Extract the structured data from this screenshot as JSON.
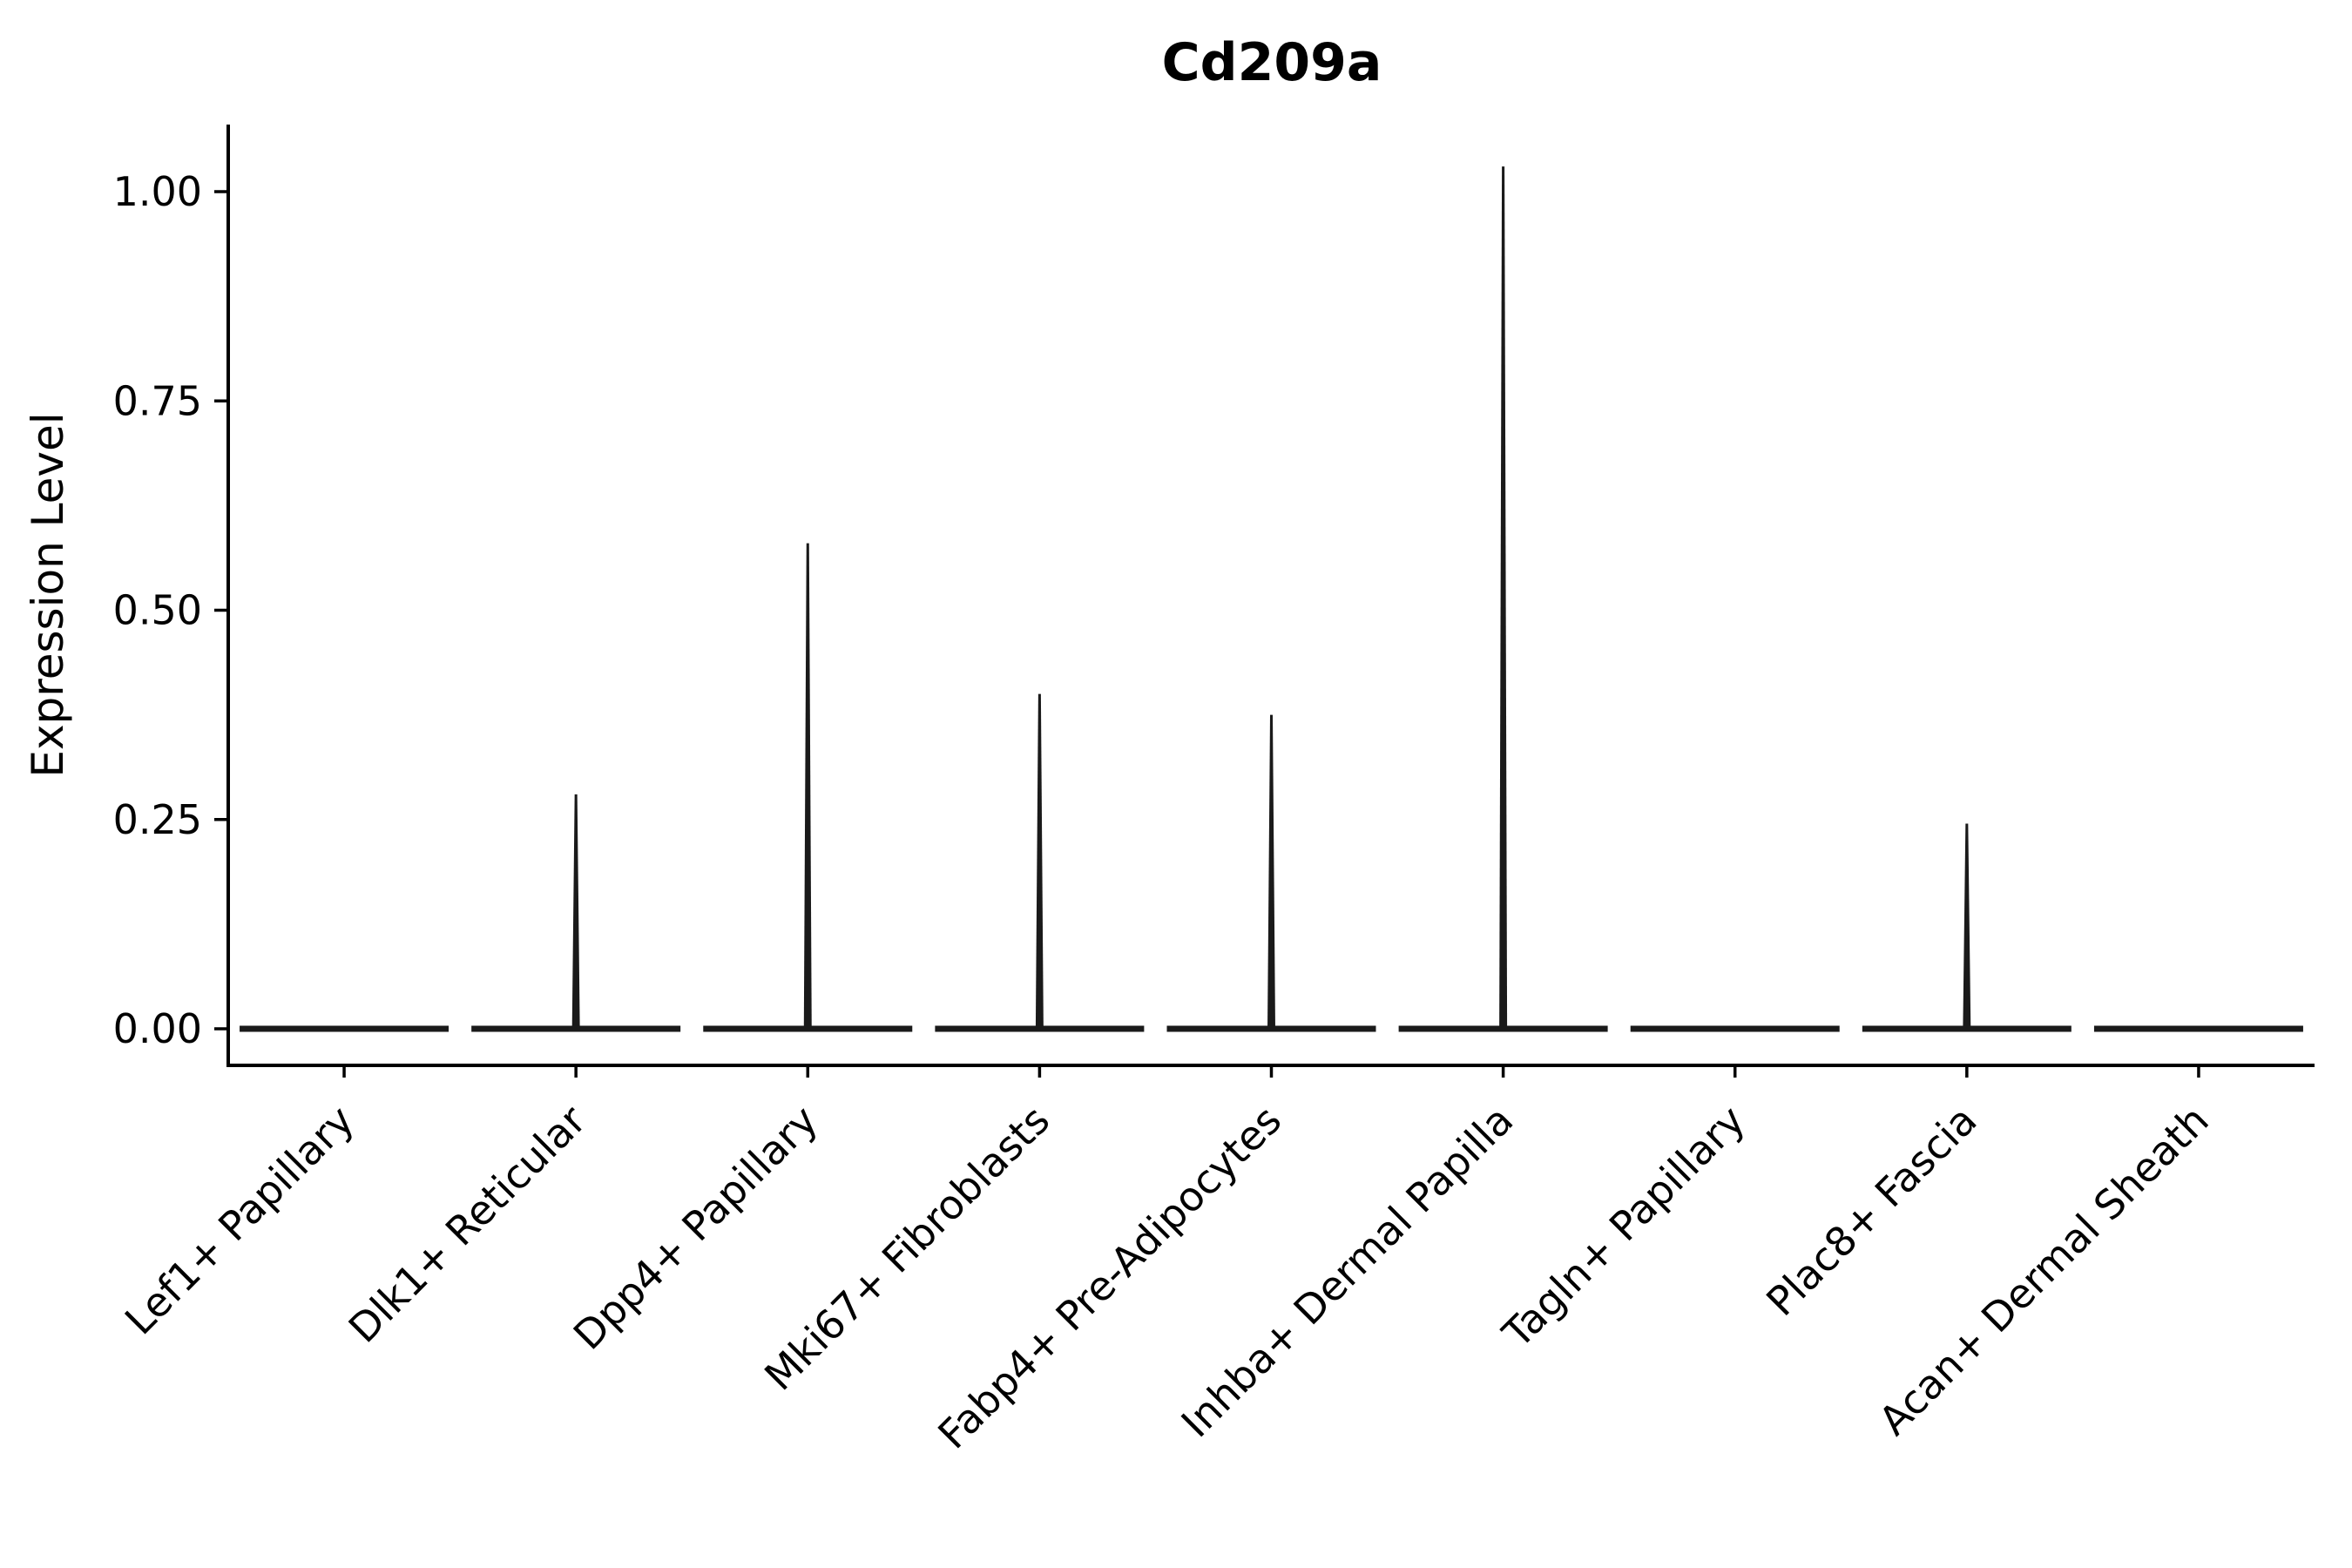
{
  "chart_data": {
    "type": "violin",
    "title": "Cd209a",
    "xlabel": "",
    "ylabel": "Expression Level",
    "categories": [
      "Lef1+ Papillary",
      "Dlk1+ Reticular",
      "Dpp4+ Papillary",
      "Mki67+ Fibroblasts",
      "Fabp4+ Pre-Adipocytes",
      "Inhba+ Dermal Papilla",
      "Tagln+ Papillary",
      "Plac8+ Fascia",
      "Acan+ Dermal Sheath"
    ],
    "baseline_value": 0.0,
    "max_expression": [
      0.0,
      0.28,
      0.58,
      0.4,
      0.375,
      1.03,
      0.0,
      0.245,
      0.0
    ],
    "yticks": [
      0.0,
      0.25,
      0.5,
      0.75,
      1.0
    ],
    "ytick_labels": [
      "0.00",
      "0.25",
      "0.50",
      "0.75",
      "1.00"
    ],
    "ylim": [
      -0.044,
      1.08
    ],
    "grid": false,
    "legend": "none",
    "axis_color": "#000000",
    "violin_color": "#1a1a1a",
    "description": "Violin plot: every cluster has a flat collapsed violin at expression 0; some clusters show a thin spike up to the maximum expression value."
  }
}
